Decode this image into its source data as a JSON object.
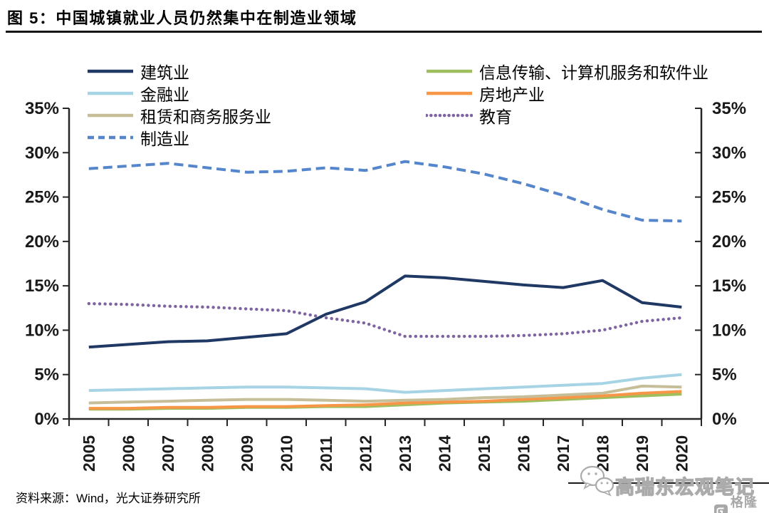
{
  "title": "图 5：中国城镇就业人员仍然集中在制造业领域",
  "source_note": "资料来源：Wind，光大证券研究所",
  "watermark": {
    "wechat_name": "高瑞东宏观笔记",
    "logo_text": "格隆汇"
  },
  "colors": {
    "axis": "#262626",
    "tick_label": "#1a1a1a",
    "title_rule": "#151515"
  },
  "chart_data": {
    "type": "line",
    "title": "中国城镇就业人员仍然集中在制造业领域",
    "x": [
      "2005",
      "2006",
      "2007",
      "2008",
      "2009",
      "2010",
      "2011",
      "2012",
      "2013",
      "2014",
      "2015",
      "2016",
      "2017",
      "2018",
      "2019",
      "2020"
    ],
    "y_axis": {
      "min": 0,
      "max": 35,
      "step": 5,
      "format": "percent",
      "sides": [
        "left",
        "right"
      ]
    },
    "grid": false,
    "legend_position": "top",
    "series": [
      {
        "name": "建筑业",
        "color": "#1F3864",
        "style": "solid",
        "values": [
          8.1,
          8.4,
          8.7,
          8.8,
          9.2,
          9.6,
          11.8,
          13.2,
          16.1,
          15.9,
          15.5,
          15.1,
          14.8,
          15.6,
          13.1,
          12.6
        ]
      },
      {
        "name": "金融业",
        "color": "#A6D4E4",
        "style": "solid",
        "values": [
          3.2,
          3.3,
          3.4,
          3.5,
          3.6,
          3.6,
          3.5,
          3.4,
          3.0,
          3.2,
          3.4,
          3.6,
          3.8,
          4.0,
          4.6,
          5.0
        ]
      },
      {
        "name": "租赁和商务服务业",
        "color": "#C6BE98",
        "style": "solid",
        "values": [
          1.8,
          1.9,
          2.0,
          2.1,
          2.2,
          2.2,
          2.1,
          2.0,
          2.1,
          2.2,
          2.4,
          2.5,
          2.7,
          2.9,
          3.7,
          3.6
        ]
      },
      {
        "name": "制造业",
        "color": "#5586CC",
        "style": "dashed",
        "values": [
          28.2,
          28.5,
          28.8,
          28.3,
          27.8,
          27.9,
          28.3,
          28.0,
          29.0,
          28.4,
          27.6,
          26.5,
          25.2,
          23.6,
          22.4,
          22.3
        ]
      },
      {
        "name": "信息传输、计算机服务和软件业",
        "color": "#9FBF5F",
        "style": "solid",
        "values": [
          1.1,
          1.1,
          1.2,
          1.2,
          1.3,
          1.3,
          1.4,
          1.4,
          1.6,
          1.8,
          1.9,
          2.0,
          2.2,
          2.4,
          2.6,
          2.8
        ]
      },
      {
        "name": "房地产业",
        "color": "#F79646",
        "style": "solid",
        "values": [
          1.2,
          1.2,
          1.3,
          1.3,
          1.4,
          1.4,
          1.5,
          1.6,
          1.8,
          1.9,
          2.0,
          2.2,
          2.4,
          2.6,
          2.9,
          3.1
        ]
      },
      {
        "name": "教育",
        "color": "#8064A2",
        "style": "dotted",
        "values": [
          13.0,
          12.9,
          12.7,
          12.6,
          12.4,
          12.2,
          11.4,
          10.8,
          9.3,
          9.3,
          9.3,
          9.4,
          9.6,
          10.0,
          11.0,
          11.4
        ]
      }
    ]
  }
}
